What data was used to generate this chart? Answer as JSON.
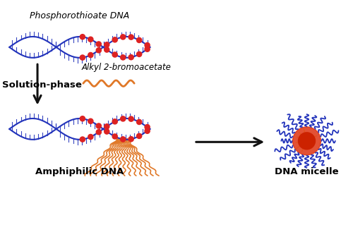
{
  "bg_color": "#ffffff",
  "text_phosphorothioate": "Phosphorothioate DNA",
  "text_solution_phase": "Solution-phase",
  "text_alkyl": "Alkyl 2-bromoacetate",
  "text_amphiphilic": "Amphiphilic DNA",
  "text_micelle": "DNA micelle",
  "blue_color": "#2233bb",
  "red_color": "#cc2222",
  "orange_color": "#e07828",
  "arrow_color": "#111111",
  "dna_blue": "#2233bb",
  "dna_red": "#dd2222"
}
